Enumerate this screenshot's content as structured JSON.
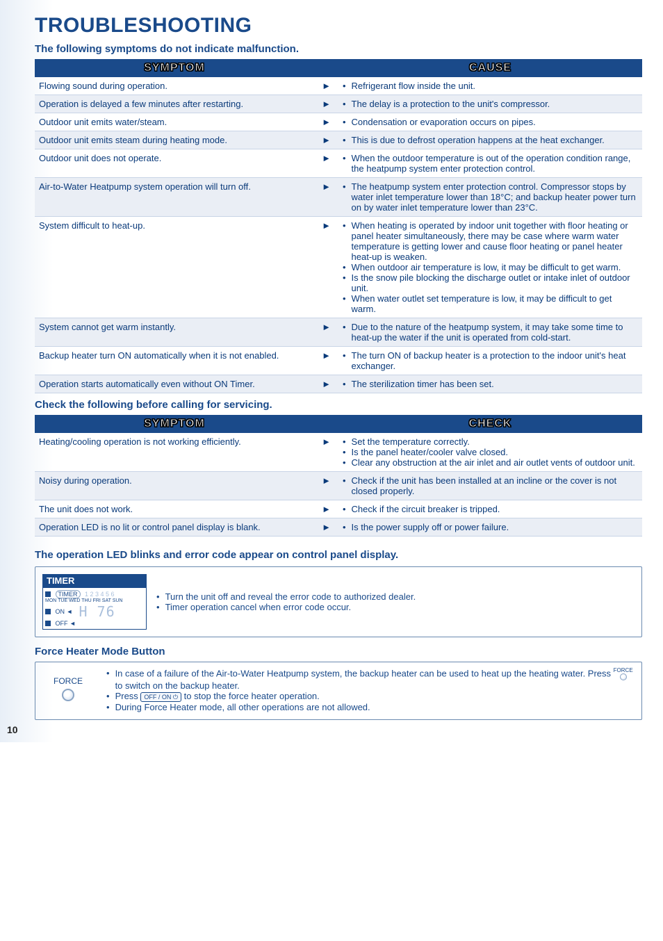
{
  "title": "TROUBLESHOOTING",
  "pageNumber": "10",
  "sections": {
    "s1": {
      "subtitle": "The following symptoms do not indicate malfunction.",
      "header_left": "SYMPTOM",
      "header_right": "CAUSE",
      "arrow": "►",
      "rows": [
        {
          "symptom": "Flowing sound during operation.",
          "causes": [
            "Refrigerant flow inside the unit."
          ]
        },
        {
          "symptom": "Operation is delayed a few minutes after restarting.",
          "causes": [
            "The delay is a protection to the unit's compressor."
          ]
        },
        {
          "symptom": "Outdoor unit emits water/steam.",
          "causes": [
            "Condensation or evaporation occurs on pipes."
          ]
        },
        {
          "symptom": "Outdoor unit emits steam during heating mode.",
          "causes": [
            "This is due to defrost operation happens at the heat exchanger."
          ]
        },
        {
          "symptom": "Outdoor unit does not operate.",
          "causes": [
            "When the outdoor temperature is out of the operation condition range, the heatpump system enter protection control."
          ]
        },
        {
          "symptom": "Air-to-Water Heatpump system operation will turn off.",
          "causes": [
            "The heatpump system enter protection control. Compressor stops by water inlet temperature lower than 18°C; and backup heater power turn on by water inlet temperature lower than 23°C."
          ]
        },
        {
          "symptom": "System difficult to heat-up.",
          "causes": [
            "When heating is operated by indoor unit together with floor heating or panel heater simultaneously, there may be case where warm water temperature is getting lower and cause floor heating or panel heater heat-up is weaken.",
            "When outdoor air temperature is low, it may be difficult to get warm.",
            "Is the snow pile blocking the discharge outlet or intake inlet of outdoor unit.",
            "When water outlet set temperature is low, it may be difficult to get warm."
          ]
        },
        {
          "symptom": "System cannot get warm instantly.",
          "causes": [
            "Due to the nature of the heatpump system, it may take some time to heat-up the water if the unit is operated from cold-start."
          ]
        },
        {
          "symptom": "Backup heater turn ON automatically when it is not enabled.",
          "causes": [
            "The turn ON of backup heater is a protection to the indoor unit's heat exchanger."
          ]
        },
        {
          "symptom": "Operation starts automatically even without ON Timer.",
          "causes": [
            "The sterilization timer has been set."
          ]
        }
      ],
      "shade_pattern": [
        false,
        true,
        false,
        true,
        false,
        true,
        false,
        true,
        false,
        true
      ]
    },
    "s2": {
      "subtitle": "Check the following before calling for servicing.",
      "header_left": "SYMPTOM",
      "header_right": "CHECK",
      "arrow": "►",
      "rows": [
        {
          "symptom": "Heating/cooling operation is not working efficiently.",
          "checks": [
            "Set the temperature correctly.",
            "Is the panel heater/cooler valve closed.",
            "Clear any obstruction at the air inlet and air outlet vents of outdoor unit."
          ]
        },
        {
          "symptom": "Noisy during operation.",
          "checks": [
            "Check if the unit has been installed at an incline or the cover is not closed properly."
          ]
        },
        {
          "symptom": "The unit does not work.",
          "checks": [
            "Check if the circuit breaker is tripped."
          ]
        },
        {
          "symptom": "Operation LED is no lit or control panel display is blank.",
          "checks": [
            "Is the power supply off or power failure."
          ]
        }
      ],
      "shade_pattern": [
        false,
        true,
        false,
        true
      ]
    },
    "s3": {
      "subtitle": "The operation LED blinks and error code appear on control panel display.",
      "timer": {
        "label": "TIMER",
        "timer_row": "TIMER",
        "nums": "1 2 3 4 5 6",
        "days": "MON TUE WED THU FRI SAT SUN",
        "on": "ON ◄",
        "off": "OFF ◄",
        "err": "H  76"
      },
      "bullets": [
        "Turn the unit off and reveal the error code to authorized dealer.",
        "Timer operation cancel when error code occur."
      ]
    },
    "s4": {
      "subtitle": "Force Heater Mode Button",
      "icon_label": "FORCE",
      "lines": {
        "l1a": "In case of a failure of the Air-to-Water Heatpump system, the backup heater can be used to heat up the heating water. Press ",
        "l1b": " to switch on the backup heater.",
        "l2a": "Press ",
        "l2b": " to stop the force heater operation.",
        "l3": "During Force Heater mode, all other operations are not allowed.",
        "force_small": "FORCE",
        "offon_btn": "OFF / ON ⏻"
      }
    }
  },
  "colors": {
    "brand": "#1a4a8a",
    "shade": "#eaeef5",
    "border": "#c8d4e6"
  }
}
